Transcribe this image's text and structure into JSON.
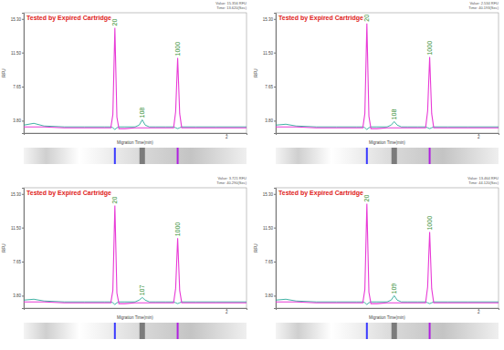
{
  "chart_data": [
    {
      "type": "line",
      "title": "Tested by Expired Cartridge",
      "subtitle": [
        "Value: 15.356 RFU",
        "Time: 13.620(Sec)"
      ],
      "x_label": "Migration Time(min)",
      "y_label": "RFU",
      "x": [
        0,
        0.1,
        0.2,
        0.4,
        0.6,
        0.8,
        0.86,
        0.88,
        0.9,
        0.92,
        0.94,
        1.0,
        1.1,
        1.14,
        1.17,
        1.2,
        1.24,
        1.3,
        1.4,
        1.48,
        1.5,
        1.52,
        1.54,
        1.56,
        1.7,
        1.9,
        2.2
      ],
      "series": [
        {
          "color": "#e83ad6",
          "values": [
            3.1,
            3.1,
            3.1,
            3.0,
            3.0,
            3.0,
            3.0,
            4.5,
            14.3,
            4.2,
            2.9,
            2.9,
            3.0,
            3.0,
            3.0,
            3.0,
            3.0,
            3.0,
            3.0,
            3.0,
            4.8,
            10.9,
            4.6,
            3.0,
            3.0,
            3.0,
            3.0
          ]
        },
        {
          "color": "#2aa89a",
          "values": [
            3.3,
            3.5,
            3.2,
            3.1,
            3.1,
            3.1,
            3.1,
            3.0,
            2.8,
            3.0,
            3.1,
            3.1,
            3.1,
            3.3,
            3.9,
            3.3,
            3.1,
            3.1,
            3.1,
            3.1,
            3.0,
            2.9,
            3.0,
            3.1,
            3.1,
            3.1,
            3.1
          ]
        }
      ],
      "annotations": [
        {
          "text": "20",
          "x": 0.9,
          "y": 14.3
        },
        {
          "text": "108",
          "x": 1.17,
          "y": 3.9
        },
        {
          "text": "1000",
          "x": 1.52,
          "y": 10.9
        }
      ],
      "xlim": [
        0,
        2.2
      ],
      "xticks": [
        2
      ],
      "ylim": [
        2.4,
        16.0
      ],
      "yticks": [
        {
          "value": 3.8,
          "label": "3.80"
        },
        {
          "value": 7.65,
          "label": "7.65"
        },
        {
          "value": 11.5,
          "label": "11.50"
        },
        {
          "value": 15.3,
          "label": "15.30"
        }
      ],
      "grid": false
    },
    {
      "type": "line",
      "title": "Tested by Expired Cartridge",
      "subtitle": [
        "Value: 2.534 RFU",
        "Time: 40.193(Sec)"
      ],
      "x_label": "Migration Time(min)",
      "y_label": "RFU",
      "x": [
        0,
        0.1,
        0.2,
        0.4,
        0.6,
        0.8,
        0.86,
        0.88,
        0.9,
        0.92,
        0.94,
        1.0,
        1.1,
        1.14,
        1.17,
        1.2,
        1.24,
        1.3,
        1.4,
        1.48,
        1.5,
        1.52,
        1.54,
        1.56,
        1.7,
        1.9,
        2.2
      ],
      "series": [
        {
          "color": "#e83ad6",
          "values": [
            3.1,
            3.1,
            3.1,
            3.0,
            3.0,
            3.0,
            3.0,
            4.6,
            14.8,
            4.3,
            2.9,
            2.9,
            3.0,
            3.0,
            3.0,
            3.0,
            3.0,
            3.0,
            3.0,
            3.0,
            4.9,
            11.0,
            4.6,
            3.0,
            3.0,
            3.0,
            3.0
          ]
        },
        {
          "color": "#2aa89a",
          "values": [
            3.3,
            3.4,
            3.2,
            3.1,
            3.1,
            3.1,
            3.1,
            3.0,
            2.8,
            3.0,
            3.1,
            3.1,
            3.1,
            3.3,
            3.7,
            3.3,
            3.1,
            3.1,
            3.1,
            3.1,
            3.0,
            2.9,
            3.0,
            3.1,
            3.1,
            3.1,
            3.1
          ]
        }
      ],
      "annotations": [
        {
          "text": "20",
          "x": 0.9,
          "y": 14.8
        },
        {
          "text": "108",
          "x": 1.17,
          "y": 3.7
        },
        {
          "text": "1000",
          "x": 1.52,
          "y": 11.0
        }
      ],
      "xlim": [
        0,
        2.2
      ],
      "xticks": [
        2
      ],
      "ylim": [
        2.4,
        16.0
      ],
      "yticks": [
        {
          "value": 3.8,
          "label": "3.80"
        },
        {
          "value": 7.65,
          "label": "7.65"
        },
        {
          "value": 11.5,
          "label": "11.50"
        },
        {
          "value": 15.3,
          "label": "15.30"
        }
      ],
      "grid": false
    },
    {
      "type": "line",
      "title": "Tested by Expired Cartridge",
      "subtitle": [
        "Value: 3.721 RFU",
        "Time: 40.290(Sec)"
      ],
      "x_label": "Migration Time(min)",
      "y_label": "RFU",
      "x": [
        0,
        0.1,
        0.2,
        0.4,
        0.6,
        0.8,
        0.86,
        0.88,
        0.9,
        0.92,
        0.94,
        1.0,
        1.1,
        1.14,
        1.17,
        1.2,
        1.24,
        1.3,
        1.4,
        1.48,
        1.5,
        1.52,
        1.54,
        1.56,
        1.7,
        1.9,
        2.2
      ],
      "series": [
        {
          "color": "#e83ad6",
          "values": [
            3.1,
            3.1,
            3.1,
            3.0,
            3.0,
            3.0,
            3.0,
            4.4,
            14.0,
            4.1,
            2.9,
            2.9,
            3.0,
            3.0,
            3.0,
            3.0,
            3.0,
            3.0,
            3.0,
            3.0,
            4.6,
            10.3,
            4.4,
            3.0,
            3.0,
            3.0,
            3.0
          ]
        },
        {
          "color": "#2aa89a",
          "values": [
            3.3,
            3.4,
            3.2,
            3.1,
            3.1,
            3.1,
            3.1,
            3.0,
            2.8,
            3.0,
            3.1,
            3.1,
            3.1,
            3.3,
            3.6,
            3.3,
            3.1,
            3.1,
            3.1,
            3.1,
            3.0,
            2.9,
            3.0,
            3.1,
            3.1,
            3.1,
            3.1
          ]
        }
      ],
      "annotations": [
        {
          "text": "20",
          "x": 0.9,
          "y": 14.0
        },
        {
          "text": "107",
          "x": 1.17,
          "y": 3.6
        },
        {
          "text": "1000",
          "x": 1.52,
          "y": 10.3
        }
      ],
      "xlim": [
        0,
        2.2
      ],
      "xticks": [
        2
      ],
      "ylim": [
        2.4,
        16.0
      ],
      "yticks": [
        {
          "value": 3.8,
          "label": "3.80"
        },
        {
          "value": 7.65,
          "label": "7.65"
        },
        {
          "value": 11.5,
          "label": "11.50"
        },
        {
          "value": 15.3,
          "label": "15.30"
        }
      ],
      "grid": false
    },
    {
      "type": "line",
      "title": "Tested by Expired Cartridge",
      "subtitle": [
        "Value: 13.464 RFU",
        "Time: 44.120(Sec)"
      ],
      "x_label": "Migration Time(min)",
      "y_label": "RFU",
      "x": [
        0,
        0.1,
        0.2,
        0.4,
        0.6,
        0.8,
        0.86,
        0.88,
        0.9,
        0.92,
        0.94,
        1.0,
        1.1,
        1.14,
        1.17,
        1.2,
        1.24,
        1.3,
        1.4,
        1.48,
        1.5,
        1.52,
        1.54,
        1.56,
        1.7,
        1.9,
        2.2
      ],
      "series": [
        {
          "color": "#e83ad6",
          "values": [
            3.1,
            3.1,
            3.1,
            3.0,
            3.0,
            3.0,
            3.0,
            4.5,
            14.2,
            4.2,
            2.9,
            2.9,
            3.0,
            3.0,
            3.0,
            3.0,
            3.0,
            3.0,
            3.0,
            3.0,
            4.8,
            11.0,
            4.6,
            3.0,
            3.0,
            3.0,
            3.0
          ]
        },
        {
          "color": "#2aa89a",
          "values": [
            3.3,
            3.4,
            3.2,
            3.1,
            3.1,
            3.1,
            3.1,
            3.0,
            2.8,
            3.0,
            3.1,
            3.1,
            3.1,
            3.3,
            3.8,
            3.3,
            3.1,
            3.1,
            3.1,
            3.1,
            3.0,
            2.9,
            3.0,
            3.1,
            3.1,
            3.1,
            3.1
          ]
        }
      ],
      "annotations": [
        {
          "text": "20",
          "x": 0.9,
          "y": 14.2
        },
        {
          "text": "109",
          "x": 1.17,
          "y": 3.8
        },
        {
          "text": "1000",
          "x": 1.52,
          "y": 11.0
        }
      ],
      "xlim": [
        0,
        2.2
      ],
      "xticks": [
        2
      ],
      "ylim": [
        2.4,
        16.0
      ],
      "yticks": [
        {
          "value": 3.8,
          "label": "3.80"
        },
        {
          "value": 7.65,
          "label": "7.65"
        },
        {
          "value": 11.5,
          "label": "11.50"
        },
        {
          "value": 15.3,
          "label": "15.30"
        }
      ],
      "grid": false
    }
  ]
}
